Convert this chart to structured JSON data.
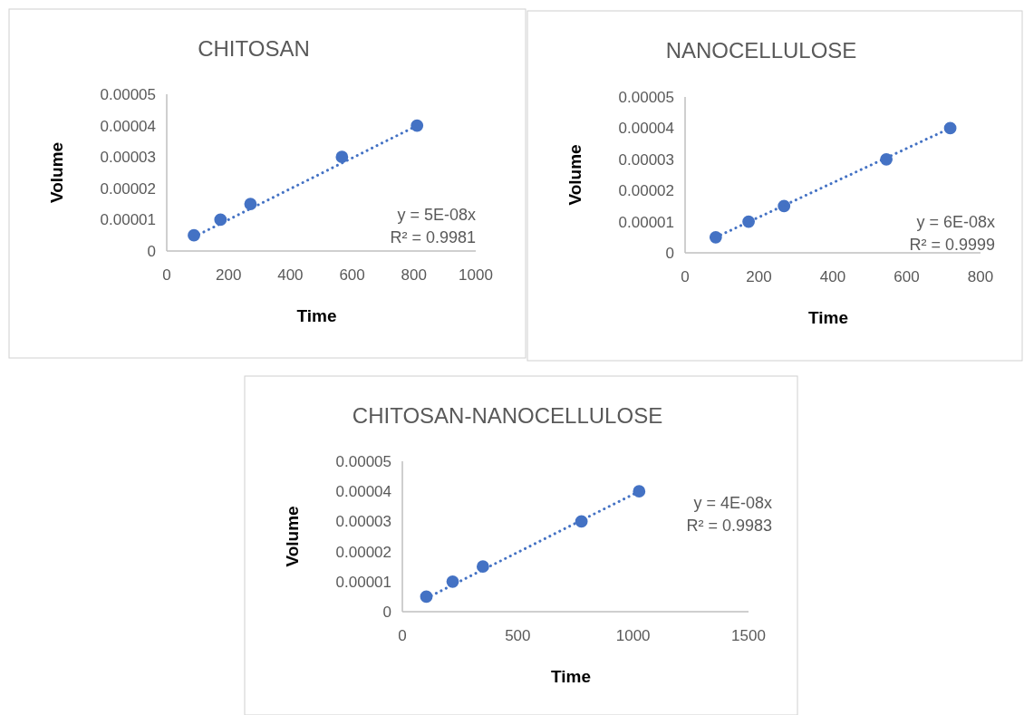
{
  "chart_data": [
    {
      "type": "scatter",
      "title": "CHITOSAN",
      "xlabel": "Time",
      "ylabel": "Volume",
      "xlim": [
        0,
        1000
      ],
      "xticks": [
        0,
        200,
        400,
        600,
        800,
        1000
      ],
      "ylim": [
        0,
        5e-05
      ],
      "yticks": [
        {
          "value": 0,
          "label": "0"
        },
        {
          "value": 1e-05,
          "label": "0.00001"
        },
        {
          "value": 2e-05,
          "label": "0.00002"
        },
        {
          "value": 3e-05,
          "label": "0.00003"
        },
        {
          "value": 4e-05,
          "label": "0.00004"
        },
        {
          "value": 5e-05,
          "label": "0.00005"
        }
      ],
      "grid": false,
      "marker": "circle",
      "series": [
        {
          "color": "#4472c4",
          "x": [
            88,
            174,
            271,
            567,
            810
          ],
          "values": [
            5e-06,
            1e-05,
            1.5e-05,
            3e-05,
            4e-05
          ]
        },
        {
          "type": "line",
          "color": "#4472c4",
          "line_style": "dotted",
          "marker": "none",
          "x": [
            88,
            810
          ],
          "values": [
            4.5e-06,
            4e-05
          ]
        }
      ],
      "annotations": [
        "y = 5E-08x",
        "R² = 0.9981"
      ]
    },
    {
      "type": "scatter",
      "title": "NANOCELLULOSE",
      "xlabel": "Time",
      "ylabel": "Volume",
      "xlim": [
        0,
        800
      ],
      "xticks": [
        0,
        200,
        400,
        600,
        800
      ],
      "ylim": [
        0,
        5e-05
      ],
      "yticks": [
        {
          "value": 0,
          "label": "0"
        },
        {
          "value": 1e-05,
          "label": "0.00001"
        },
        {
          "value": 2e-05,
          "label": "0.00002"
        },
        {
          "value": 3e-05,
          "label": "0.00003"
        },
        {
          "value": 4e-05,
          "label": "0.00004"
        },
        {
          "value": 5e-05,
          "label": "0.00005"
        }
      ],
      "grid": false,
      "marker": "circle",
      "series": [
        {
          "color": "#4472c4",
          "x": [
            83,
            172,
            268,
            545,
            718
          ],
          "values": [
            5e-06,
            1e-05,
            1.5e-05,
            3e-05,
            4e-05
          ]
        },
        {
          "type": "line",
          "color": "#4472c4",
          "line_style": "dotted",
          "marker": "none",
          "x": [
            83,
            718
          ],
          "values": [
            5e-06,
            4e-05
          ]
        }
      ],
      "annotations": [
        "y = 6E-08x",
        "R² = 0.9999"
      ]
    },
    {
      "type": "scatter",
      "title": "CHITOSAN-NANOCELLULOSE",
      "xlabel": "Time",
      "ylabel": "Volume",
      "xlim": [
        0,
        1500
      ],
      "xticks": [
        0,
        500,
        1000,
        1500
      ],
      "ylim": [
        0,
        5e-05
      ],
      "yticks": [
        {
          "value": 0,
          "label": "0"
        },
        {
          "value": 1e-05,
          "label": "0.00001"
        },
        {
          "value": 2e-05,
          "label": "0.00002"
        },
        {
          "value": 3e-05,
          "label": "0.00003"
        },
        {
          "value": 4e-05,
          "label": "0.00004"
        },
        {
          "value": 5e-05,
          "label": "0.00005"
        }
      ],
      "grid": false,
      "marker": "circle",
      "series": [
        {
          "color": "#4472c4",
          "x": [
            104,
            218,
            349,
            776,
            1026
          ],
          "values": [
            5e-06,
            1e-05,
            1.5e-05,
            3e-05,
            4e-05
          ]
        },
        {
          "type": "line",
          "color": "#4472c4",
          "line_style": "dotted",
          "marker": "none",
          "x": [
            104,
            1026
          ],
          "values": [
            4.5e-06,
            4e-05
          ]
        }
      ],
      "annotations": [
        "y = 4E-08x",
        "R² = 0.9983"
      ]
    }
  ]
}
